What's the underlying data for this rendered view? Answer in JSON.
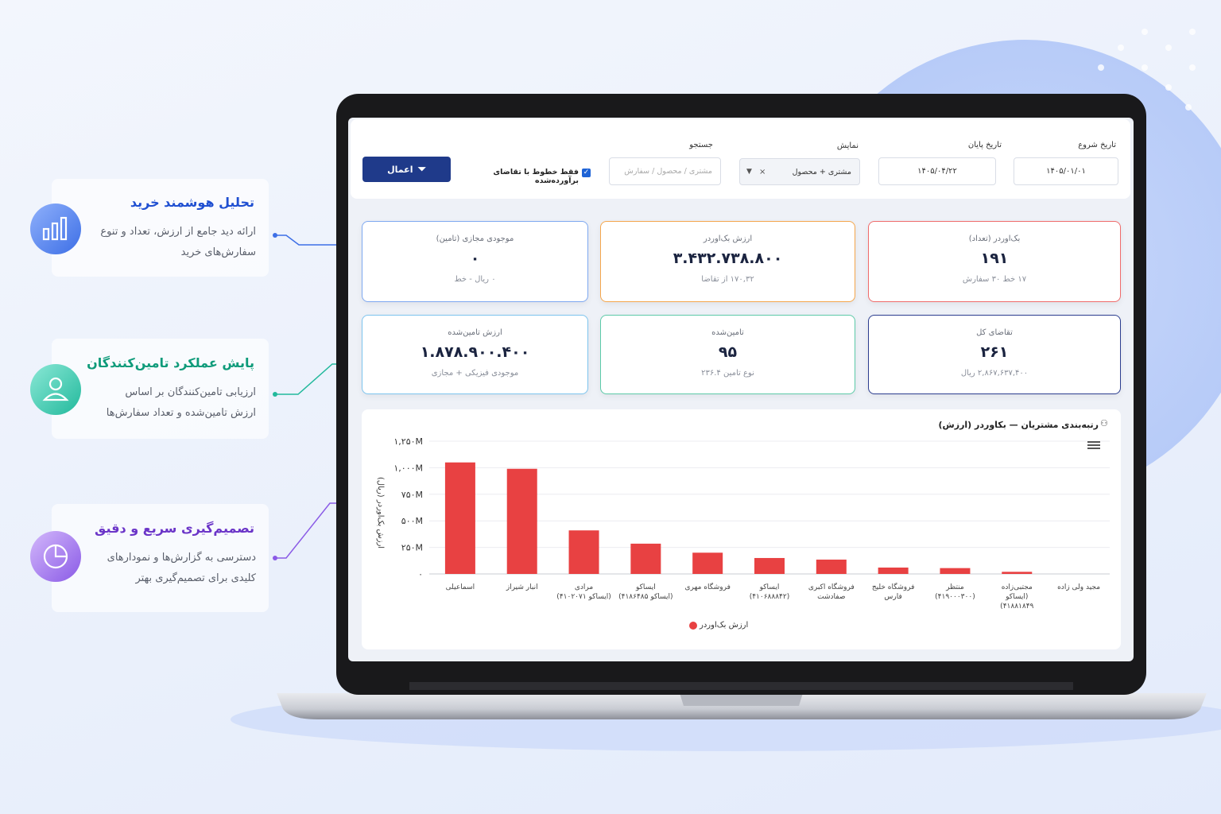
{
  "features": [
    {
      "title": "تحلیل هوشمند خرید",
      "text": "ارائه دید جامع از ارزش، تعداد و تنوع سفارش‌های خرید"
    },
    {
      "title": "پایش عملکرد تامین‌کنندگان",
      "text": "ارزیابی تامین‌کنندگان بر اساس ارزش تامین‌شده و تعداد سفارش‌ها"
    },
    {
      "title": "تصمیم‌گیری سریع و دقیق",
      "text": "دسترسی به گزارش‌ها و نمودارهای کلیدی برای تصمیم‌گیری بهتر"
    }
  ],
  "filters": {
    "start": {
      "label": "تاریخ شروع",
      "value": "۱۴۰۵/۰۱/۰۱"
    },
    "end": {
      "label": "تاریخ پایان",
      "value": "۱۴۰۵/۰۴/۲۲"
    },
    "display": {
      "label": "نمایش",
      "value": "مشتری + محصول"
    },
    "search": {
      "label": "جستجو",
      "placeholder": "مشتری / محصول / سفارش"
    },
    "checkbox": "فقط خطوط با تقاضای برآورده‌شده",
    "apply": "اعمال"
  },
  "cards": [
    {
      "label": "بک‌اوردر (تعداد)",
      "value": "۱۹۱",
      "sub": "۱۷ خط ۳۰ سفارش",
      "color": "#ef6b6b"
    },
    {
      "label": "ارزش بک‌اوردر",
      "value": "۳.۴۳۲.۷۳۸.۸۰۰",
      "sub": "۱۷۰,۳۲ از تقاضا",
      "color": "#f4a64c"
    },
    {
      "label": "موجودی مجازی (تامین)",
      "value": "۰",
      "sub": "۰ ریال - خط",
      "color": "#7ea8f0"
    },
    {
      "label": "تقاضای کل",
      "value": "۲۶۱",
      "sub": "۲,۸۶۷,۶۳۷,۴۰۰ ریال",
      "color": "#2b3d8f"
    },
    {
      "label": "تامین‌شده",
      "value": "۹۵",
      "sub": "نوع تامین ۲۳۶.۴",
      "color": "#5ccaa8"
    },
    {
      "label": "ارزش تامین‌شده",
      "value": "۱.۸۷۸.۹۰۰.۴۰۰",
      "sub": "موجودی فیزیکی + مجازی",
      "color": "#7cc4ee"
    }
  ],
  "chart_data": {
    "type": "bar",
    "title": "رتبه‌بندی مشتریان — بکاوردر (ارزش)",
    "y_label": "ارزش بک‌اوردر (ریال)",
    "categories": [
      "اسماعیلی",
      "انبار شیراز",
      "مرادی\n(ایساکو ۴۱۰۲۰۷۱)",
      "ایساکو\n(ایساکو ۴۱۸۶۴۸۵)",
      "فروشگاه مهری",
      "ایساکو\n(۴۱۰۶۸۸۸۴۲)",
      "فروشگاه اکبری\nصفادشت",
      "فروشگاه خلیج\nفارس",
      "منتظر\n(۴۱۹۰۰۰۳۰۰)",
      "مجتبی‌زاده\n(ایساکو\n۴۱۸۸۱۸۴۹)",
      "مجید ولی زاده"
    ],
    "series": [
      {
        "name": "ارزش بک‌اوردر",
        "color": "#e84142",
        "values": [
          1050000000,
          990000000,
          410000000,
          285000000,
          200000000,
          150000000,
          135000000,
          60000000,
          55000000,
          20000000,
          0
        ]
      }
    ],
    "ylim": [
      0,
      1250000000
    ],
    "yticks": [
      {
        "value": 0,
        "label": "۰"
      },
      {
        "value": 250000000,
        "label": "۲۵۰M"
      },
      {
        "value": 500000000,
        "label": "۵۰۰M"
      },
      {
        "value": 750000000,
        "label": "۷۵۰M"
      },
      {
        "value": 1000000000,
        "label": "۱,۰۰۰M"
      },
      {
        "value": 1250000000,
        "label": "۱,۲۵۰M"
      }
    ],
    "grid": true,
    "legend": "bottom"
  }
}
